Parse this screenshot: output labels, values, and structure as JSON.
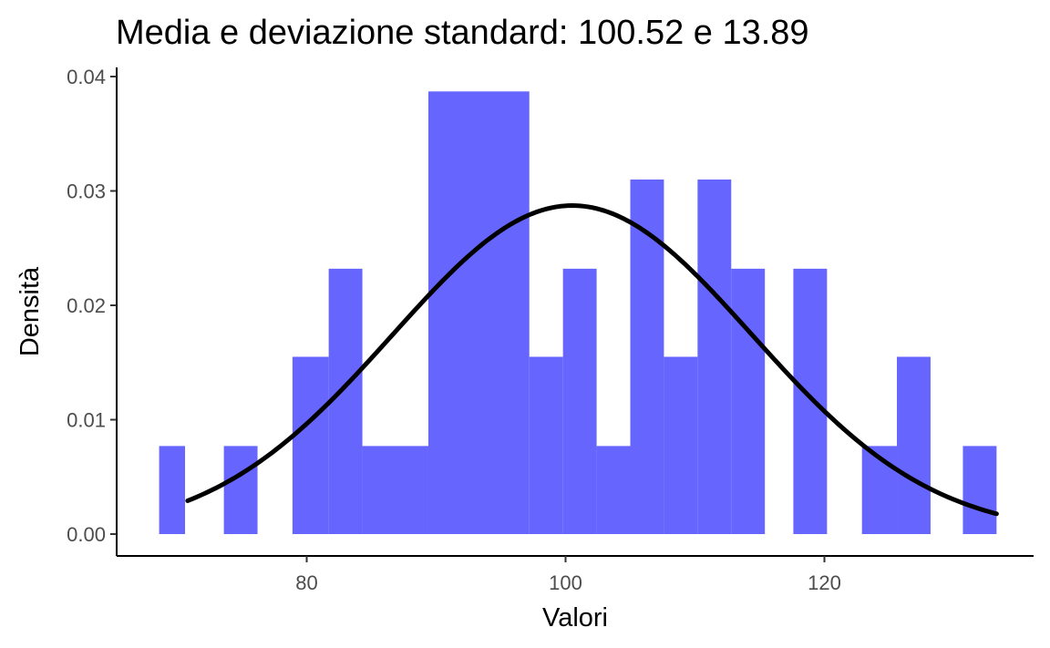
{
  "chart_data": {
    "type": "bar",
    "title": "Media e deviazione standard: 100.52 e 13.89",
    "xlabel": "Valori",
    "ylabel": "Densità",
    "xlim": [
      66,
      136
    ],
    "ylim": [
      0,
      0.04
    ],
    "xticks": [
      80,
      100,
      120
    ],
    "yticks": [
      0.0,
      0.01,
      0.02,
      0.03,
      0.04
    ],
    "ytick_labels": [
      "0.00",
      "0.01",
      "0.02",
      "0.03",
      "0.04"
    ],
    "xtick_labels": [
      "80",
      "100",
      "120"
    ],
    "bar_color": "#6666ff",
    "curve_color": "#000000",
    "grid": false,
    "legend": "none",
    "bins": [
      {
        "x0": 68.6,
        "x1": 70.6,
        "density": 0.0077
      },
      {
        "x0": 73.6,
        "x1": 76.2,
        "density": 0.0077
      },
      {
        "x0": 78.9,
        "x1": 81.7,
        "density": 0.0155
      },
      {
        "x0": 81.7,
        "x1": 84.3,
        "density": 0.0232
      },
      {
        "x0": 84.3,
        "x1": 89.4,
        "density": 0.0077
      },
      {
        "x0": 89.4,
        "x1": 97.2,
        "density": 0.0387
      },
      {
        "x0": 97.2,
        "x1": 99.8,
        "density": 0.0155
      },
      {
        "x0": 99.8,
        "x1": 102.4,
        "density": 0.0232
      },
      {
        "x0": 102.4,
        "x1": 105.0,
        "density": 0.0077
      },
      {
        "x0": 105.0,
        "x1": 107.6,
        "density": 0.031
      },
      {
        "x0": 107.6,
        "x1": 110.2,
        "density": 0.0155
      },
      {
        "x0": 110.2,
        "x1": 112.8,
        "density": 0.031
      },
      {
        "x0": 112.8,
        "x1": 115.4,
        "density": 0.0232
      },
      {
        "x0": 117.6,
        "x1": 120.2,
        "density": 0.0232
      },
      {
        "x0": 122.9,
        "x1": 125.6,
        "density": 0.0077
      },
      {
        "x0": 125.6,
        "x1": 128.2,
        "density": 0.0155
      },
      {
        "x0": 130.7,
        "x1": 133.3,
        "density": 0.0077
      }
    ],
    "normal_curve": {
      "mean": 100.52,
      "sd": 13.89,
      "x_from": 70.8,
      "x_to": 133.3
    }
  }
}
